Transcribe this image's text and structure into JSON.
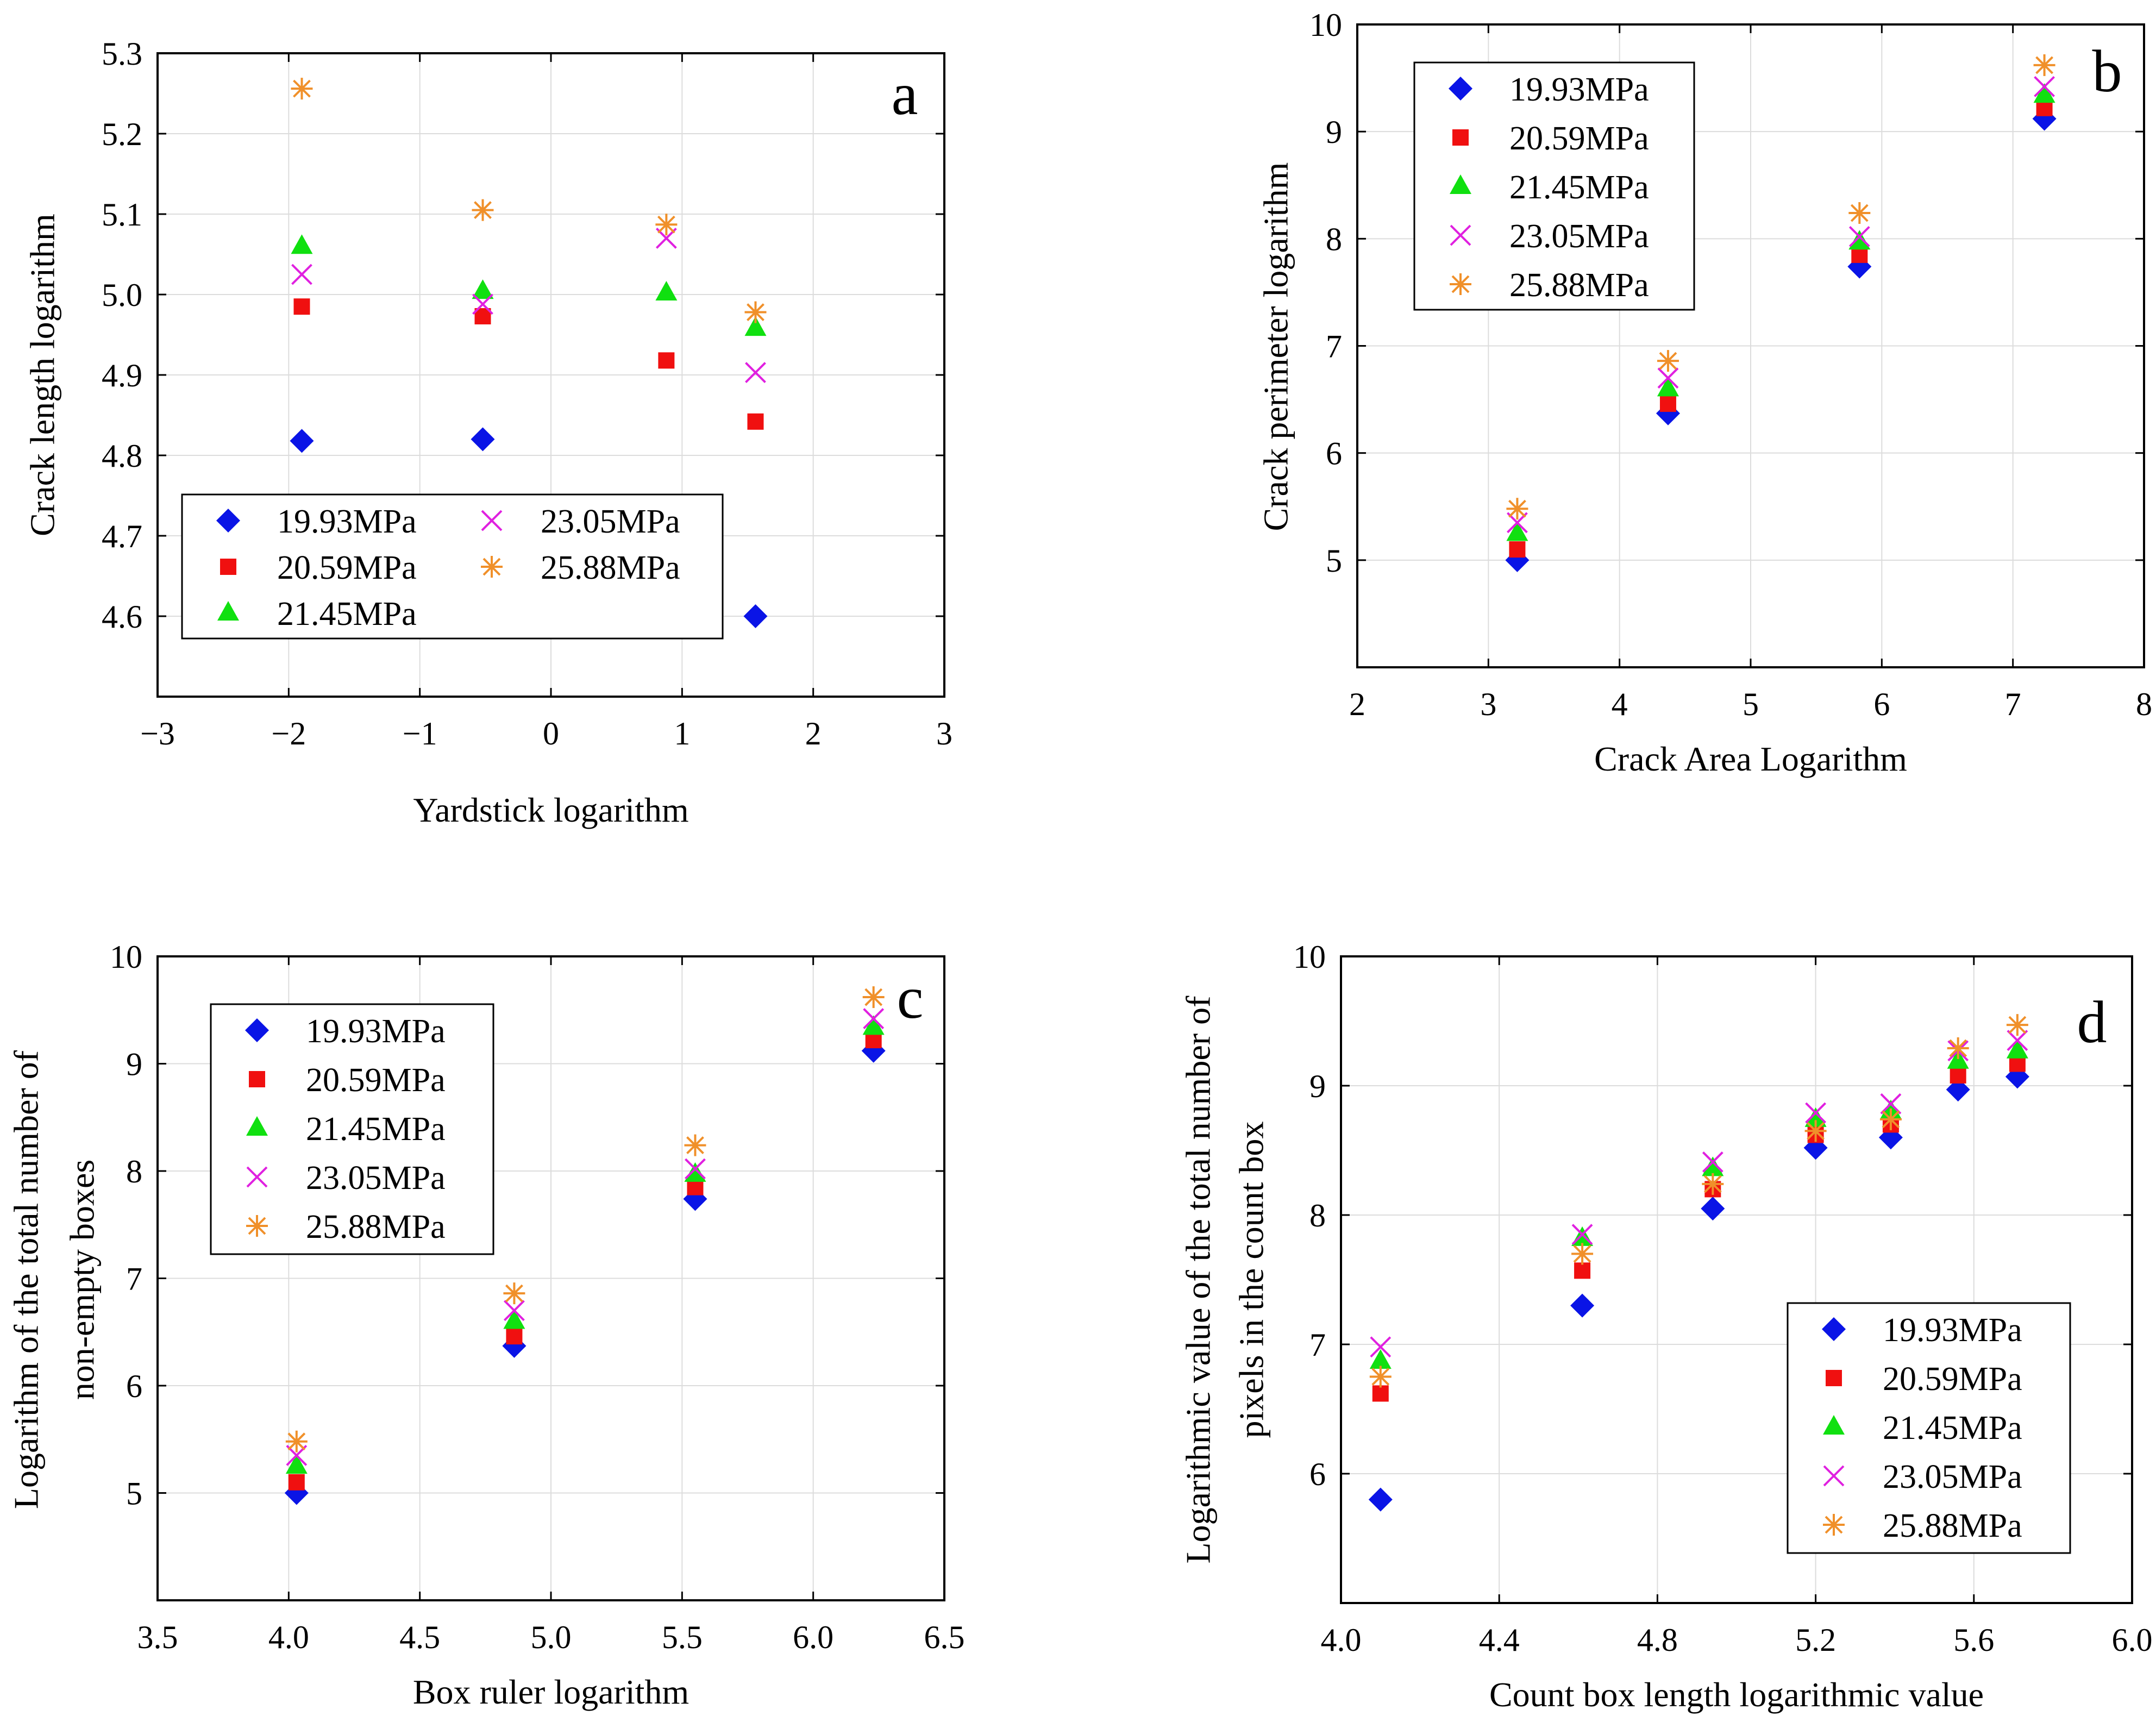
{
  "colors": {
    "19.93MPa": "#0a14e6",
    "20.59MPa": "#f01010",
    "21.45MPa": "#10e010",
    "23.05MPa": "#e020e0",
    "25.88MPa": "#f0902a"
  },
  "chart_data": [
    {
      "id": "a",
      "type": "scatter",
      "letter": "a",
      "title": "",
      "xlabel": "Yardstick logarithm",
      "ylabel": "Crack length logarithm",
      "xlim": [
        -3,
        3
      ],
      "ylim": [
        4.5,
        5.3
      ],
      "xticks": [
        -3,
        -2,
        -1,
        0,
        1,
        2,
        3
      ],
      "xtick_labels": [
        "−3",
        "−2",
        "−1",
        "0",
        "1",
        "2",
        "3"
      ],
      "yticks": [
        4.6,
        4.7,
        4.8,
        4.9,
        5.0,
        5.1,
        5.2,
        5.3
      ],
      "ytick_labels": [
        "4.6",
        "4.7",
        "4.8",
        "4.9",
        "5.0",
        "5.1",
        "5.2",
        "5.3"
      ],
      "legend_position": "bottom-left, two columns",
      "series": [
        {
          "name": "19.93MPa",
          "marker": "diamond",
          "x": [
            -1.9,
            -0.52,
            1.56
          ],
          "y": [
            4.818,
            4.82,
            4.6
          ]
        },
        {
          "name": "20.59MPa",
          "marker": "square",
          "x": [
            -1.9,
            -0.52,
            0.88,
            1.56
          ],
          "y": [
            4.985,
            4.973,
            4.918,
            4.842
          ]
        },
        {
          "name": "21.45MPa",
          "marker": "triangle",
          "x": [
            -1.9,
            -0.52,
            0.88,
            1.56
          ],
          "y": [
            5.06,
            5.004,
            5.002,
            4.958
          ]
        },
        {
          "name": "23.05MPa",
          "marker": "x",
          "x": [
            -1.9,
            -0.52,
            0.88,
            1.56
          ],
          "y": [
            5.025,
            4.988,
            5.07,
            4.903
          ]
        },
        {
          "name": "25.88MPa",
          "marker": "asterisk",
          "x": [
            -1.9,
            -0.52,
            0.88,
            1.56
          ],
          "y": [
            5.256,
            5.105,
            5.087,
            4.978
          ]
        }
      ]
    },
    {
      "id": "b",
      "type": "scatter",
      "letter": "b",
      "title": "",
      "xlabel": "Crack Area Logarithm",
      "ylabel": "Crack perimeter logarithm",
      "xlim": [
        2,
        8
      ],
      "ylim": [
        4,
        10
      ],
      "xticks": [
        2,
        3,
        4,
        5,
        6,
        7,
        8
      ],
      "xtick_labels": [
        "2",
        "3",
        "4",
        "5",
        "6",
        "7",
        "8"
      ],
      "yticks": [
        5,
        6,
        7,
        8,
        9,
        10
      ],
      "ytick_labels": [
        "5",
        "6",
        "7",
        "8",
        "9",
        "10"
      ],
      "legend_position": "top-left",
      "series": [
        {
          "name": "19.93MPa",
          "marker": "diamond",
          "x": [
            3.22,
            4.37,
            5.83,
            7.24
          ],
          "y": [
            5.0,
            6.37,
            7.74,
            9.12
          ]
        },
        {
          "name": "20.59MPa",
          "marker": "square",
          "x": [
            3.22,
            4.37,
            5.83,
            7.24
          ],
          "y": [
            5.1,
            6.46,
            7.85,
            9.22
          ]
        },
        {
          "name": "21.45MPa",
          "marker": "triangle",
          "x": [
            3.22,
            4.37,
            5.83,
            7.24
          ],
          "y": [
            5.25,
            6.6,
            7.97,
            9.34
          ]
        },
        {
          "name": "23.05MPa",
          "marker": "x",
          "x": [
            3.22,
            4.37,
            5.83,
            7.24
          ],
          "y": [
            5.35,
            6.7,
            8.02,
            9.42
          ]
        },
        {
          "name": "25.88MPa",
          "marker": "asterisk",
          "x": [
            3.22,
            4.37,
            5.83,
            7.24
          ],
          "y": [
            5.48,
            6.86,
            8.24,
            9.62
          ]
        }
      ]
    },
    {
      "id": "c",
      "type": "scatter",
      "letter": "c",
      "title": "",
      "xlabel": "Box ruler logarithm",
      "ylabel": "Logarithm of the total number of non-empty boxes",
      "ylabel_lines": [
        "Logarithm of the total number of",
        "non-empty boxes"
      ],
      "xlim": [
        3.5,
        6.5
      ],
      "ylim": [
        4,
        10
      ],
      "xticks": [
        3.5,
        4.0,
        4.5,
        5.0,
        5.5,
        6.0,
        6.5
      ],
      "xtick_labels": [
        "3.5",
        "4.0",
        "4.5",
        "5.0",
        "5.5",
        "6.0",
        "6.5"
      ],
      "yticks": [
        5,
        6,
        7,
        8,
        9,
        10
      ],
      "ytick_labels": [
        "5",
        "6",
        "7",
        "8",
        "9",
        "10"
      ],
      "legend_position": "top-left",
      "series": [
        {
          "name": "19.93MPa",
          "marker": "diamond",
          "x": [
            4.03,
            4.86,
            5.55,
            6.23
          ],
          "y": [
            5.0,
            6.37,
            7.74,
            9.12
          ]
        },
        {
          "name": "20.59MPa",
          "marker": "square",
          "x": [
            4.03,
            4.86,
            5.55,
            6.23
          ],
          "y": [
            5.1,
            6.46,
            7.85,
            9.22
          ]
        },
        {
          "name": "21.45MPa",
          "marker": "triangle",
          "x": [
            4.03,
            4.86,
            5.55,
            6.23
          ],
          "y": [
            5.25,
            6.6,
            7.97,
            9.34
          ]
        },
        {
          "name": "23.05MPa",
          "marker": "x",
          "x": [
            4.03,
            4.86,
            5.55,
            6.23
          ],
          "y": [
            5.35,
            6.7,
            8.02,
            9.42
          ]
        },
        {
          "name": "25.88MPa",
          "marker": "asterisk",
          "x": [
            4.03,
            4.86,
            5.55,
            6.23
          ],
          "y": [
            5.48,
            6.86,
            8.24,
            9.62
          ]
        }
      ]
    },
    {
      "id": "d",
      "type": "scatter",
      "letter": "d",
      "title": "",
      "xlabel": "Count box length logarithmic value",
      "ylabel": "Logarithmic value of the total number of pixels in the count box",
      "ylabel_lines": [
        "Logarithmic value of the total number of",
        "pixels in the count box"
      ],
      "xlim": [
        4.0,
        6.0
      ],
      "ylim": [
        5,
        10
      ],
      "xticks": [
        4.0,
        4.4,
        4.8,
        5.2,
        5.6,
        6.0
      ],
      "xtick_labels": [
        "4.0",
        "4.4",
        "4.8",
        "5.2",
        "5.6",
        "6.0"
      ],
      "yticks": [
        6,
        7,
        8,
        9,
        10
      ],
      "ytick_labels": [
        "6",
        "7",
        "8",
        "9",
        "10"
      ],
      "legend_position": "bottom-right",
      "series": [
        {
          "name": "19.93MPa",
          "marker": "diamond",
          "x": [
            4.1,
            4.61,
            4.94,
            5.2,
            5.39,
            5.56,
            5.71
          ],
          "y": [
            5.8,
            7.3,
            8.05,
            8.52,
            8.6,
            8.97,
            9.07
          ]
        },
        {
          "name": "20.59MPa",
          "marker": "square",
          "x": [
            4.1,
            4.61,
            4.94,
            5.2,
            5.39,
            5.56,
            5.71
          ],
          "y": [
            6.62,
            7.57,
            8.2,
            8.62,
            8.7,
            9.08,
            9.17
          ]
        },
        {
          "name": "21.45MPa",
          "marker": "triangle",
          "x": [
            4.1,
            4.61,
            4.94,
            5.2,
            5.39,
            5.56,
            5.71
          ],
          "y": [
            6.87,
            7.82,
            8.36,
            8.74,
            8.8,
            9.19,
            9.27
          ]
        },
        {
          "name": "23.05MPa",
          "marker": "x",
          "x": [
            4.1,
            4.61,
            4.94,
            5.2,
            5.39,
            5.56,
            5.71
          ],
          "y": [
            6.98,
            7.85,
            8.41,
            8.79,
            8.86,
            9.27,
            9.35
          ]
        },
        {
          "name": "25.88MPa",
          "marker": "asterisk",
          "x": [
            4.1,
            4.61,
            4.94,
            5.2,
            5.39,
            5.56,
            5.71
          ],
          "y": [
            6.75,
            7.7,
            8.24,
            8.65,
            8.74,
            9.29,
            9.47
          ]
        }
      ]
    }
  ]
}
